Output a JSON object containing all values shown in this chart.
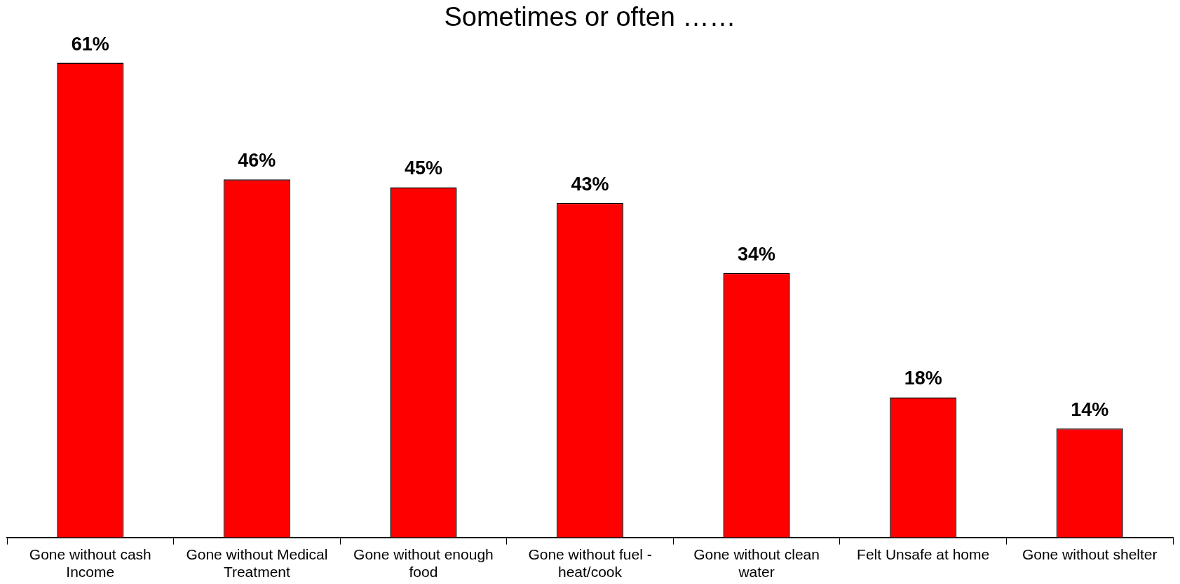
{
  "chart_data": {
    "type": "bar",
    "title": "Sometimes or often ……",
    "categories": [
      "Gone without cash Income",
      "Gone without Medical Treatment",
      "Gone without enough food",
      "Gone without fuel - heat/cook",
      "Gone without clean water",
      "Felt Unsafe at home",
      "Gone without shelter"
    ],
    "values": [
      61,
      46,
      45,
      43,
      34,
      18,
      14
    ],
    "color": "#ff0000",
    "data_labels": true,
    "value_labels": [
      "61%",
      "46%",
      "45%",
      "43%",
      "34%",
      "18%",
      "14%"
    ]
  }
}
